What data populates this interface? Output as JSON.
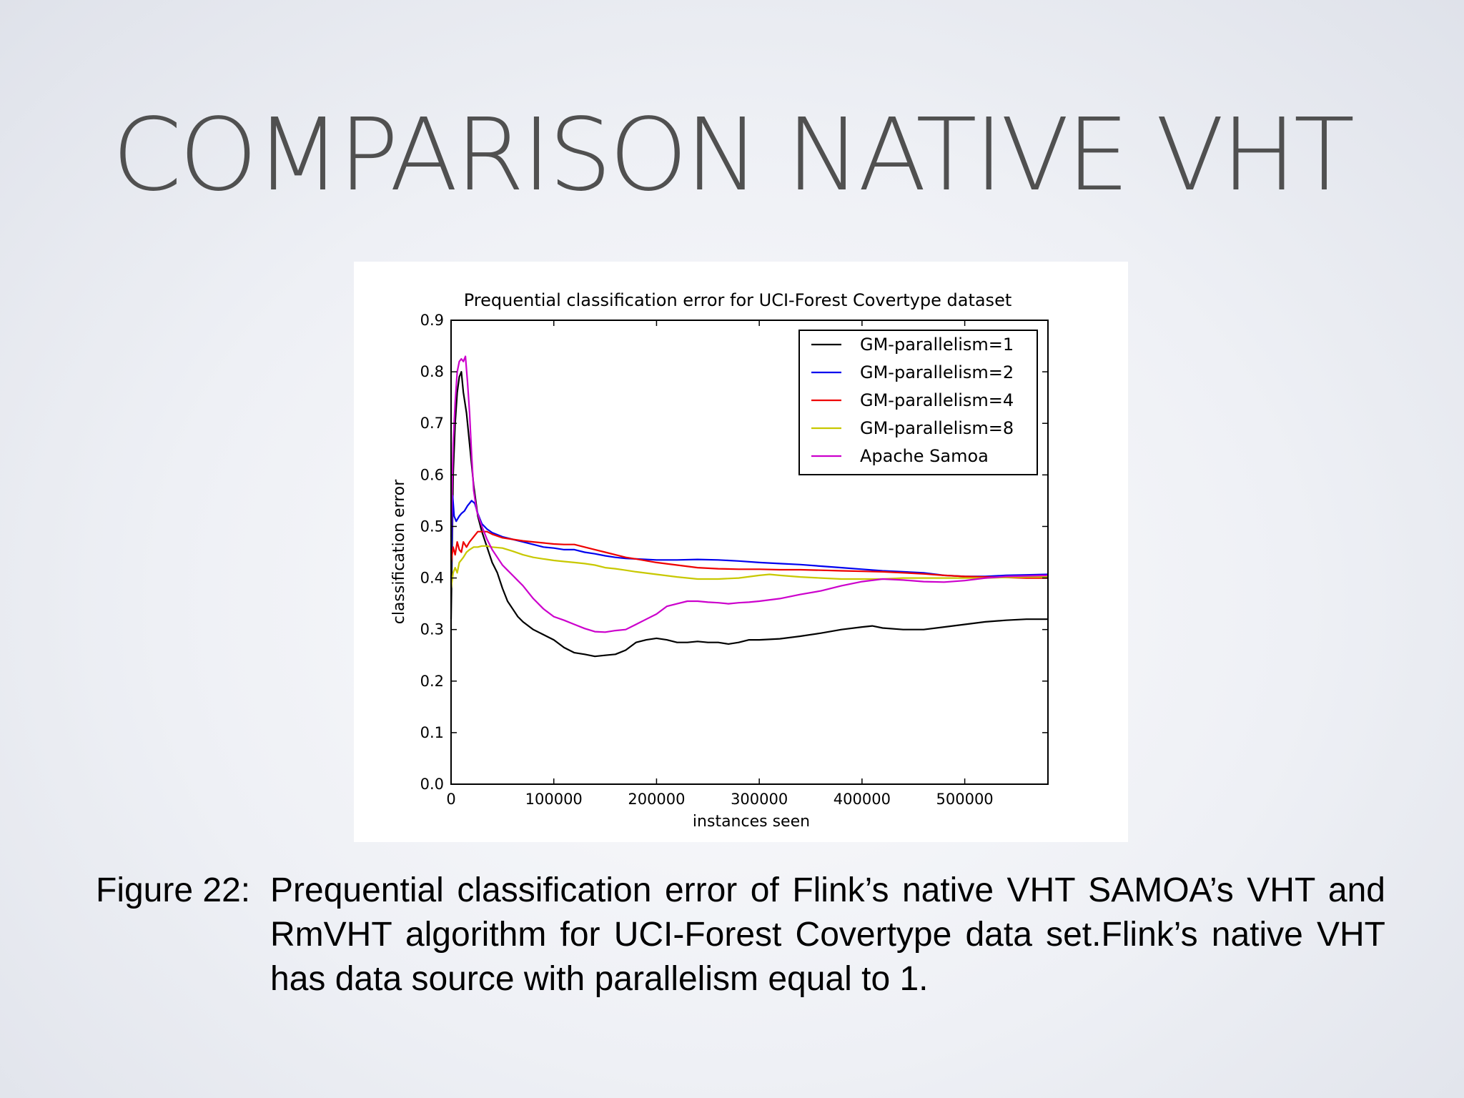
{
  "slide": {
    "title": "COMPARISON NATIVE VHT"
  },
  "caption": {
    "label": "Figure 22:",
    "text": "Prequential classification error of Flink’s native VHT SAMOA’s VHT and RmVHT algorithm for UCI-Forest Covertype data set.Flink’s native VHT has data source with parallelism equal to 1."
  },
  "chart_data": {
    "type": "line",
    "title": "Prequential classification error for UCI-Forest Covertype dataset",
    "xlabel": "instances seen",
    "ylabel": "classification error",
    "xlim": [
      0,
      581000
    ],
    "ylim": [
      0,
      0.9
    ],
    "xticks": [
      0,
      100000,
      200000,
      300000,
      400000,
      500000
    ],
    "yticks": [
      0.0,
      0.1,
      0.2,
      0.3,
      0.4,
      0.5,
      0.6,
      0.7,
      0.8,
      0.9
    ],
    "grid": false,
    "legend_position": "top-right",
    "series": [
      {
        "name": "GM-parallelism=1",
        "color": "#000000",
        "points": [
          [
            0,
            0.32
          ],
          [
            2000,
            0.6
          ],
          [
            4000,
            0.7
          ],
          [
            6000,
            0.76
          ],
          [
            8000,
            0.79
          ],
          [
            10000,
            0.8
          ],
          [
            12000,
            0.76
          ],
          [
            15000,
            0.72
          ],
          [
            18000,
            0.66
          ],
          [
            22000,
            0.58
          ],
          [
            26000,
            0.52
          ],
          [
            30000,
            0.49
          ],
          [
            35000,
            0.46
          ],
          [
            40000,
            0.43
          ],
          [
            45000,
            0.41
          ],
          [
            50000,
            0.38
          ],
          [
            55000,
            0.355
          ],
          [
            60000,
            0.34
          ],
          [
            65000,
            0.325
          ],
          [
            70000,
            0.315
          ],
          [
            80000,
            0.3
          ],
          [
            90000,
            0.29
          ],
          [
            100000,
            0.28
          ],
          [
            110000,
            0.265
          ],
          [
            120000,
            0.255
          ],
          [
            130000,
            0.252
          ],
          [
            140000,
            0.248
          ],
          [
            150000,
            0.25
          ],
          [
            160000,
            0.252
          ],
          [
            170000,
            0.26
          ],
          [
            180000,
            0.275
          ],
          [
            190000,
            0.28
          ],
          [
            200000,
            0.283
          ],
          [
            210000,
            0.28
          ],
          [
            220000,
            0.275
          ],
          [
            230000,
            0.275
          ],
          [
            240000,
            0.277
          ],
          [
            250000,
            0.275
          ],
          [
            260000,
            0.275
          ],
          [
            270000,
            0.272
          ],
          [
            280000,
            0.275
          ],
          [
            290000,
            0.28
          ],
          [
            300000,
            0.28
          ],
          [
            320000,
            0.282
          ],
          [
            340000,
            0.287
          ],
          [
            360000,
            0.293
          ],
          [
            380000,
            0.3
          ],
          [
            400000,
            0.305
          ],
          [
            410000,
            0.307
          ],
          [
            420000,
            0.303
          ],
          [
            440000,
            0.3
          ],
          [
            460000,
            0.3
          ],
          [
            480000,
            0.305
          ],
          [
            500000,
            0.31
          ],
          [
            520000,
            0.315
          ],
          [
            540000,
            0.318
          ],
          [
            560000,
            0.32
          ],
          [
            581000,
            0.32
          ]
        ]
      },
      {
        "name": "GM-parallelism=2",
        "color": "#0000ee",
        "points": [
          [
            0,
            0.4
          ],
          [
            1500,
            0.56
          ],
          [
            3000,
            0.52
          ],
          [
            5000,
            0.51
          ],
          [
            8000,
            0.52
          ],
          [
            10000,
            0.525
          ],
          [
            13000,
            0.53
          ],
          [
            16000,
            0.54
          ],
          [
            18000,
            0.545
          ],
          [
            20000,
            0.55
          ],
          [
            23000,
            0.545
          ],
          [
            26000,
            0.525
          ],
          [
            30000,
            0.505
          ],
          [
            35000,
            0.495
          ],
          [
            40000,
            0.488
          ],
          [
            50000,
            0.48
          ],
          [
            60000,
            0.475
          ],
          [
            70000,
            0.47
          ],
          [
            80000,
            0.465
          ],
          [
            90000,
            0.46
          ],
          [
            100000,
            0.458
          ],
          [
            110000,
            0.455
          ],
          [
            120000,
            0.455
          ],
          [
            130000,
            0.45
          ],
          [
            140000,
            0.447
          ],
          [
            150000,
            0.443
          ],
          [
            160000,
            0.44
          ],
          [
            170000,
            0.438
          ],
          [
            180000,
            0.437
          ],
          [
            200000,
            0.435
          ],
          [
            220000,
            0.435
          ],
          [
            240000,
            0.436
          ],
          [
            260000,
            0.435
          ],
          [
            280000,
            0.433
          ],
          [
            300000,
            0.43
          ],
          [
            320000,
            0.428
          ],
          [
            340000,
            0.426
          ],
          [
            360000,
            0.423
          ],
          [
            380000,
            0.42
          ],
          [
            400000,
            0.417
          ],
          [
            420000,
            0.414
          ],
          [
            440000,
            0.412
          ],
          [
            460000,
            0.41
          ],
          [
            480000,
            0.405
          ],
          [
            500000,
            0.403
          ],
          [
            520000,
            0.403
          ],
          [
            540000,
            0.405
          ],
          [
            560000,
            0.406
          ],
          [
            581000,
            0.407
          ]
        ]
      },
      {
        "name": "GM-parallelism=4",
        "color": "#ee0000",
        "points": [
          [
            0,
            0.43
          ],
          [
            2000,
            0.46
          ],
          [
            4000,
            0.445
          ],
          [
            6000,
            0.47
          ],
          [
            8000,
            0.455
          ],
          [
            10000,
            0.45
          ],
          [
            12000,
            0.47
          ],
          [
            15000,
            0.46
          ],
          [
            18000,
            0.47
          ],
          [
            22000,
            0.48
          ],
          [
            26000,
            0.49
          ],
          [
            30000,
            0.49
          ],
          [
            35000,
            0.49
          ],
          [
            40000,
            0.485
          ],
          [
            50000,
            0.478
          ],
          [
            60000,
            0.475
          ],
          [
            70000,
            0.472
          ],
          [
            80000,
            0.47
          ],
          [
            90000,
            0.468
          ],
          [
            100000,
            0.466
          ],
          [
            110000,
            0.465
          ],
          [
            120000,
            0.465
          ],
          [
            130000,
            0.46
          ],
          [
            140000,
            0.455
          ],
          [
            150000,
            0.45
          ],
          [
            160000,
            0.445
          ],
          [
            170000,
            0.44
          ],
          [
            180000,
            0.437
          ],
          [
            200000,
            0.43
          ],
          [
            220000,
            0.425
          ],
          [
            240000,
            0.42
          ],
          [
            260000,
            0.418
          ],
          [
            280000,
            0.417
          ],
          [
            300000,
            0.417
          ],
          [
            320000,
            0.416
          ],
          [
            340000,
            0.416
          ],
          [
            360000,
            0.415
          ],
          [
            380000,
            0.414
          ],
          [
            400000,
            0.413
          ],
          [
            420000,
            0.412
          ],
          [
            440000,
            0.41
          ],
          [
            460000,
            0.408
          ],
          [
            480000,
            0.405
          ],
          [
            500000,
            0.403
          ],
          [
            520000,
            0.402
          ],
          [
            540000,
            0.401
          ],
          [
            560000,
            0.4
          ],
          [
            581000,
            0.4
          ]
        ]
      },
      {
        "name": "GM-parallelism=8",
        "color": "#c8c800",
        "points": [
          [
            0,
            0.38
          ],
          [
            2000,
            0.41
          ],
          [
            4000,
            0.42
          ],
          [
            6000,
            0.41
          ],
          [
            8000,
            0.43
          ],
          [
            10000,
            0.435
          ],
          [
            12000,
            0.44
          ],
          [
            15000,
            0.45
          ],
          [
            18000,
            0.455
          ],
          [
            22000,
            0.46
          ],
          [
            26000,
            0.46
          ],
          [
            30000,
            0.462
          ],
          [
            35000,
            0.462
          ],
          [
            40000,
            0.46
          ],
          [
            50000,
            0.458
          ],
          [
            60000,
            0.452
          ],
          [
            70000,
            0.445
          ],
          [
            80000,
            0.44
          ],
          [
            90000,
            0.437
          ],
          [
            100000,
            0.434
          ],
          [
            110000,
            0.432
          ],
          [
            120000,
            0.43
          ],
          [
            130000,
            0.428
          ],
          [
            140000,
            0.425
          ],
          [
            150000,
            0.42
          ],
          [
            160000,
            0.418
          ],
          [
            170000,
            0.415
          ],
          [
            180000,
            0.412
          ],
          [
            200000,
            0.407
          ],
          [
            220000,
            0.402
          ],
          [
            240000,
            0.398
          ],
          [
            260000,
            0.398
          ],
          [
            280000,
            0.4
          ],
          [
            300000,
            0.405
          ],
          [
            310000,
            0.407
          ],
          [
            320000,
            0.405
          ],
          [
            340000,
            0.402
          ],
          [
            360000,
            0.4
          ],
          [
            380000,
            0.398
          ],
          [
            400000,
            0.398
          ],
          [
            420000,
            0.398
          ],
          [
            440000,
            0.4
          ],
          [
            460000,
            0.4
          ],
          [
            480000,
            0.4
          ],
          [
            500000,
            0.4
          ],
          [
            520000,
            0.4
          ],
          [
            540000,
            0.401
          ],
          [
            560000,
            0.402
          ],
          [
            581000,
            0.402
          ]
        ]
      },
      {
        "name": "Apache Samoa",
        "color": "#cc00cc",
        "points": [
          [
            0,
            0.48
          ],
          [
            2000,
            0.66
          ],
          [
            4000,
            0.74
          ],
          [
            6000,
            0.8
          ],
          [
            8000,
            0.82
          ],
          [
            10000,
            0.825
          ],
          [
            12000,
            0.82
          ],
          [
            14000,
            0.83
          ],
          [
            16000,
            0.78
          ],
          [
            18000,
            0.72
          ],
          [
            20000,
            0.64
          ],
          [
            22000,
            0.57
          ],
          [
            25000,
            0.53
          ],
          [
            30000,
            0.5
          ],
          [
            35000,
            0.475
          ],
          [
            40000,
            0.455
          ],
          [
            45000,
            0.44
          ],
          [
            50000,
            0.425
          ],
          [
            55000,
            0.415
          ],
          [
            60000,
            0.405
          ],
          [
            65000,
            0.395
          ],
          [
            70000,
            0.385
          ],
          [
            80000,
            0.36
          ],
          [
            90000,
            0.34
          ],
          [
            100000,
            0.325
          ],
          [
            110000,
            0.318
          ],
          [
            120000,
            0.31
          ],
          [
            130000,
            0.302
          ],
          [
            140000,
            0.296
          ],
          [
            150000,
            0.295
          ],
          [
            160000,
            0.298
          ],
          [
            170000,
            0.3
          ],
          [
            180000,
            0.31
          ],
          [
            190000,
            0.32
          ],
          [
            200000,
            0.33
          ],
          [
            210000,
            0.345
          ],
          [
            220000,
            0.35
          ],
          [
            230000,
            0.355
          ],
          [
            240000,
            0.355
          ],
          [
            250000,
            0.353
          ],
          [
            260000,
            0.352
          ],
          [
            270000,
            0.35
          ],
          [
            280000,
            0.352
          ],
          [
            290000,
            0.353
          ],
          [
            300000,
            0.355
          ],
          [
            320000,
            0.36
          ],
          [
            340000,
            0.368
          ],
          [
            360000,
            0.375
          ],
          [
            380000,
            0.385
          ],
          [
            400000,
            0.393
          ],
          [
            420000,
            0.398
          ],
          [
            440000,
            0.396
          ],
          [
            460000,
            0.393
          ],
          [
            480000,
            0.392
          ],
          [
            500000,
            0.395
          ],
          [
            520000,
            0.4
          ],
          [
            540000,
            0.403
          ],
          [
            560000,
            0.404
          ],
          [
            581000,
            0.405
          ]
        ]
      }
    ]
  }
}
